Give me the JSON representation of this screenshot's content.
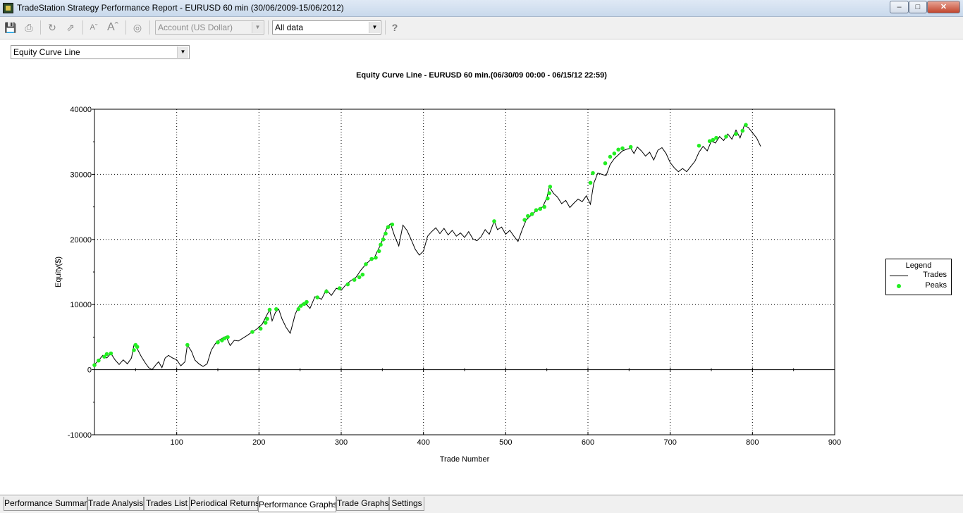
{
  "window": {
    "title": "TradeStation Strategy Performance Report - EURUSD 60 min (30/06/2009-15/06/2012)",
    "min_glyph": "–",
    "max_glyph": "□",
    "close_glyph": "✕"
  },
  "toolbar": {
    "account_value": "Account (US Dollar)",
    "range_value": "All data",
    "icons": [
      "save-icon",
      "print-icon",
      "refresh-icon",
      "export-icon",
      "decrease-font-icon",
      "increase-font-icon",
      "target-icon",
      "help-icon"
    ],
    "glyphs": {
      "save": "💾",
      "print": "⎙",
      "refresh": "↻",
      "export": "⇗",
      "font_small": "Aˇ",
      "font_large": "Aˆ",
      "target": "◎",
      "help": "?"
    }
  },
  "view_select": {
    "value": "Equity Curve Line"
  },
  "chart_data": {
    "type": "line",
    "title": "Equity Curve Line - EURUSD 60 min.(06/30/09 00:00 - 06/15/12 22:59)",
    "xlabel": "Trade Number",
    "ylabel": "Equity($)",
    "xlim": [
      0,
      900
    ],
    "ylim": [
      -10000,
      40000
    ],
    "x_ticks": [
      100,
      200,
      300,
      400,
      500,
      600,
      700,
      800,
      900
    ],
    "y_ticks": [
      -10000,
      0,
      10000,
      20000,
      30000,
      40000
    ],
    "grid": true,
    "legend": {
      "title": "Legend",
      "position": "right",
      "entries": [
        "Trades",
        "Peaks"
      ]
    },
    "colors": {
      "line": "#000000",
      "peaks": "#22ee22"
    },
    "series": [
      {
        "name": "Trades",
        "x": [
          0,
          5,
          10,
          15,
          20,
          25,
          30,
          35,
          40,
          45,
          48,
          52,
          57,
          62,
          66,
          70,
          75,
          78,
          82,
          86,
          90,
          95,
          100,
          105,
          110,
          113,
          118,
          122,
          127,
          132,
          137,
          142,
          147,
          150,
          155,
          160,
          165,
          170,
          175,
          180,
          185,
          192,
          198,
          204,
          210,
          213,
          216,
          220,
          224,
          228,
          233,
          238,
          244,
          248,
          252,
          256,
          262,
          268,
          272,
          276,
          282,
          288,
          294,
          300,
          306,
          312,
          318,
          324,
          330,
          336,
          340,
          344,
          348,
          352,
          356,
          360,
          365,
          370,
          375,
          380,
          385,
          390,
          395,
          400,
          405,
          410,
          415,
          420,
          425,
          430,
          435,
          440,
          445,
          450,
          455,
          460,
          465,
          470,
          475,
          480,
          486,
          490,
          495,
          500,
          505,
          510,
          515,
          520,
          525,
          530,
          535,
          540,
          545,
          550,
          553,
          558,
          563,
          568,
          573,
          578,
          583,
          588,
          593,
          598,
          603,
          607,
          612,
          617,
          622,
          627,
          632,
          637,
          642,
          648,
          652,
          656,
          660,
          665,
          670,
          675,
          680,
          685,
          690,
          695,
          700,
          705,
          710,
          715,
          720,
          725,
          730,
          735,
          740,
          745,
          750,
          755,
          760,
          765,
          770,
          775,
          780,
          785,
          790,
          795,
          800,
          805,
          810
        ],
        "values": [
          800,
          1400,
          2200,
          1800,
          2500,
          1500,
          800,
          1500,
          900,
          1800,
          3800,
          3200,
          2000,
          1000,
          300,
          0,
          800,
          1200,
          300,
          1800,
          2200,
          1800,
          1500,
          600,
          1200,
          3800,
          2800,
          1500,
          900,
          500,
          900,
          3000,
          4000,
          4400,
          4800,
          5100,
          3700,
          4500,
          4400,
          4800,
          5200,
          5800,
          6300,
          7000,
          8500,
          9200,
          7500,
          8800,
          9300,
          7800,
          6500,
          5600,
          8500,
          9600,
          10100,
          10300,
          9400,
          11200,
          11100,
          10800,
          12300,
          11400,
          12500,
          12200,
          13100,
          13700,
          14200,
          15300,
          16200,
          16900,
          17100,
          18200,
          19200,
          20600,
          21900,
          22400,
          20500,
          19000,
          22200,
          21400,
          20000,
          18500,
          17600,
          18200,
          20500,
          21200,
          21800,
          20900,
          21700,
          20700,
          21400,
          20500,
          21000,
          20300,
          21200,
          20100,
          19800,
          20400,
          21500,
          20800,
          22800,
          21500,
          21900,
          20800,
          21400,
          20500,
          19700,
          21500,
          23000,
          23600,
          24200,
          24700,
          25000,
          26400,
          28100,
          27100,
          26500,
          25500,
          26000,
          24900,
          25600,
          26200,
          25800,
          26700,
          25400,
          28600,
          30200,
          30000,
          29800,
          31500,
          32400,
          33000,
          33600,
          33900,
          34000,
          33200,
          34200,
          33600,
          32800,
          33400,
          32200,
          33700,
          34100,
          33200,
          31800,
          31000,
          30400,
          30900,
          30400,
          31200,
          32000,
          33400,
          34300,
          33600,
          35100,
          34800,
          35800,
          35200,
          36200,
          35400,
          36800,
          35600,
          37500,
          37200,
          36400,
          35600,
          34300
        ]
      },
      {
        "name": "Peaks",
        "x": [
          0,
          5,
          12,
          15,
          20,
          48,
          50,
          52,
          113,
          150,
          155,
          158,
          162,
          192,
          202,
          208,
          210,
          213,
          221,
          248,
          251,
          255,
          258,
          271,
          282,
          298,
          308,
          316,
          322,
          326,
          330,
          337,
          342,
          346,
          348,
          351,
          354,
          357,
          362,
          486,
          523,
          527,
          532,
          537,
          542,
          547,
          551,
          553,
          554,
          603,
          606,
          621,
          627,
          632,
          637,
          642,
          652,
          735,
          748,
          752,
          756,
          768,
          780,
          788,
          792
        ],
        "values": [
          700,
          1400,
          2000,
          2400,
          2500,
          3000,
          3800,
          3500,
          3800,
          4200,
          4500,
          4800,
          5000,
          5800,
          6300,
          7200,
          7800,
          9200,
          9300,
          9300,
          9800,
          10100,
          10400,
          11100,
          12000,
          12500,
          13100,
          13800,
          14200,
          14600,
          16200,
          17000,
          17200,
          18200,
          19200,
          20000,
          20900,
          21900,
          22300,
          22800,
          23000,
          23600,
          23900,
          24500,
          24700,
          25000,
          26300,
          27100,
          28100,
          28700,
          30200,
          31700,
          32700,
          33200,
          33800,
          34000,
          34200,
          34400,
          35100,
          35300,
          35600,
          35800,
          36200,
          36700,
          37600
        ]
      }
    ]
  },
  "tabs": [
    {
      "label": "Performance Summary",
      "active": false
    },
    {
      "label": "Trade Analysis",
      "active": false
    },
    {
      "label": "Trades List",
      "active": false
    },
    {
      "label": "Periodical Returns",
      "active": false
    },
    {
      "label": "Performance Graphs",
      "active": true
    },
    {
      "label": "Trade Graphs",
      "active": false
    },
    {
      "label": "Settings",
      "active": false
    }
  ]
}
